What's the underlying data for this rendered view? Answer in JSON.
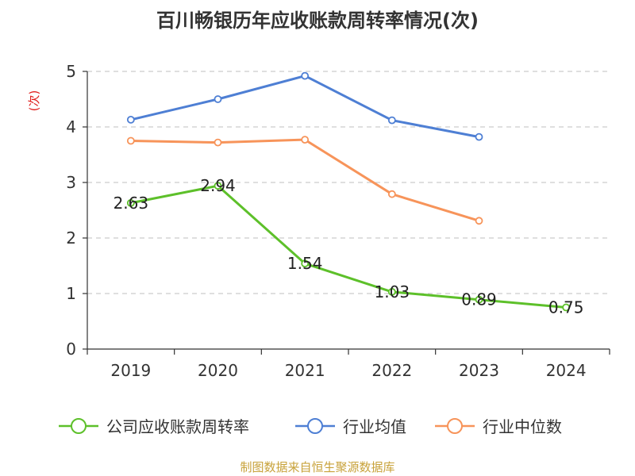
{
  "chart_data": {
    "type": "line",
    "title": "百川畅银历年应收账款周转率情况(次)",
    "ylabel": "(次)",
    "categories": [
      "2019",
      "2020",
      "2021",
      "2022",
      "2023",
      "2024"
    ],
    "y_ticks": [
      "0",
      "1",
      "2",
      "3",
      "4",
      "5"
    ],
    "ylim": [
      0,
      5
    ],
    "grid": "horizontal dashed",
    "legend_position": "bottom",
    "series": [
      {
        "name": "公司应收账款周转率",
        "color": "#5dc02a",
        "values": [
          2.63,
          2.94,
          1.54,
          1.03,
          0.89,
          0.75
        ],
        "labels": [
          "2.63",
          "2.94",
          "1.54",
          "1.03",
          "0.89",
          "0.75"
        ]
      },
      {
        "name": "行业均值",
        "color": "#4e7fd4",
        "values": [
          4.13,
          4.5,
          4.92,
          4.12,
          3.82,
          null
        ]
      },
      {
        "name": "行业中位数",
        "color": "#f7945a",
        "values": [
          3.75,
          3.72,
          3.77,
          2.79,
          2.31,
          null
        ]
      }
    ],
    "colors": {
      "axis": "#333333",
      "grid": "#cccccc",
      "unit": "#e0201e",
      "source": "#c8a23a"
    }
  },
  "footer": {
    "source": "制图数据来自恒生聚源数据库"
  }
}
